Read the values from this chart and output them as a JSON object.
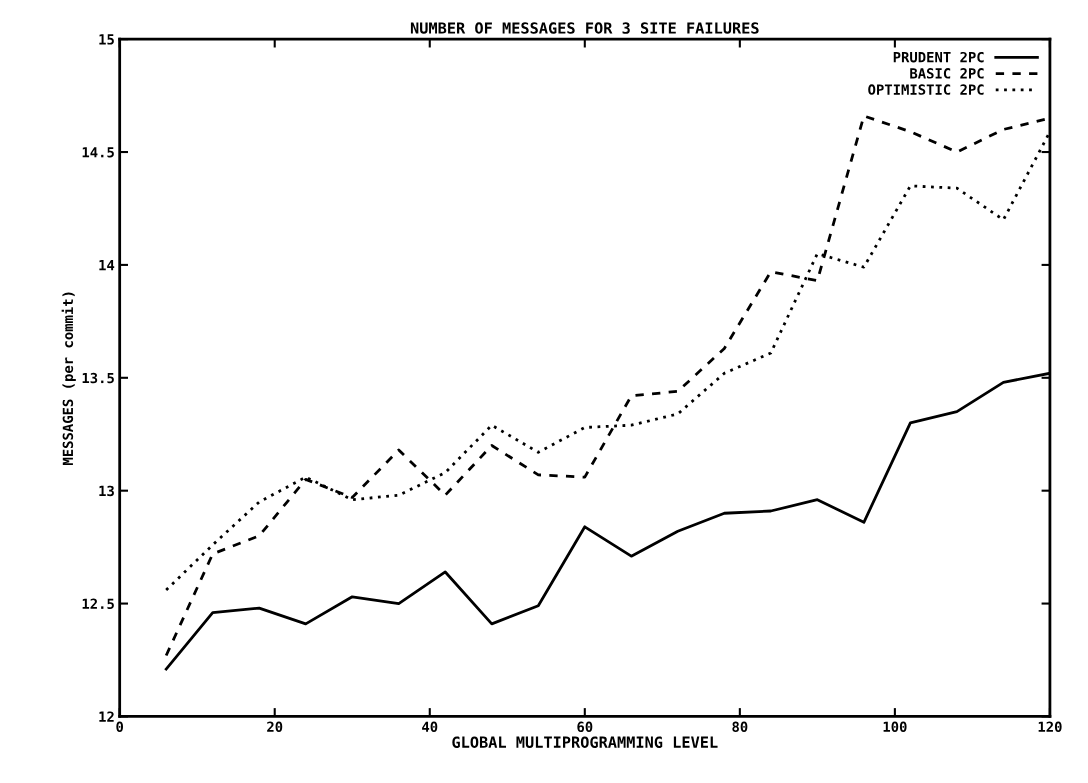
{
  "chart_data": {
    "type": "line",
    "title": "NUMBER OF MESSAGES FOR 3 SITE FAILURES",
    "xlabel": "GLOBAL MULTIPROGRAMMING LEVEL",
    "ylabel": "MESSAGES (per commit)",
    "x": [
      6,
      12,
      18,
      24,
      30,
      36,
      42,
      48,
      54,
      60,
      66,
      72,
      78,
      84,
      90,
      96,
      102,
      108,
      114,
      120
    ],
    "series": [
      {
        "name": "PRUDENT 2PC",
        "color": "#000000",
        "line_style": "solid",
        "values": [
          12.21,
          12.46,
          12.48,
          12.41,
          12.53,
          12.5,
          12.64,
          12.41,
          12.49,
          12.84,
          12.71,
          12.82,
          12.9,
          12.91,
          12.96,
          12.86,
          13.3,
          13.35,
          13.48,
          13.52
        ]
      },
      {
        "name": "BASIC 2PC",
        "color": "#000000",
        "line_style": "dashed",
        "values": [
          12.27,
          12.72,
          12.8,
          13.05,
          12.97,
          13.18,
          12.98,
          13.2,
          13.07,
          13.06,
          13.42,
          13.44,
          13.63,
          13.97,
          13.93,
          14.66,
          14.59,
          14.5,
          14.6,
          14.65
        ]
      },
      {
        "name": "OPTIMISTIC 2PC",
        "color": "#000000",
        "line_style": "dotted",
        "values": [
          12.56,
          12.76,
          12.95,
          13.06,
          12.96,
          12.98,
          13.08,
          13.29,
          13.17,
          13.28,
          13.29,
          13.34,
          13.52,
          13.61,
          14.05,
          13.99,
          14.35,
          14.34,
          14.2,
          14.59
        ]
      }
    ],
    "xlim": [
      0,
      120
    ],
    "ylim": [
      12,
      15
    ],
    "xticks": [
      0,
      20,
      40,
      60,
      80,
      100,
      120
    ],
    "yticks": [
      12,
      12.5,
      13,
      13.5,
      14,
      14.5,
      15
    ],
    "grid": false,
    "legend": "top right",
    "marker": "none"
  }
}
